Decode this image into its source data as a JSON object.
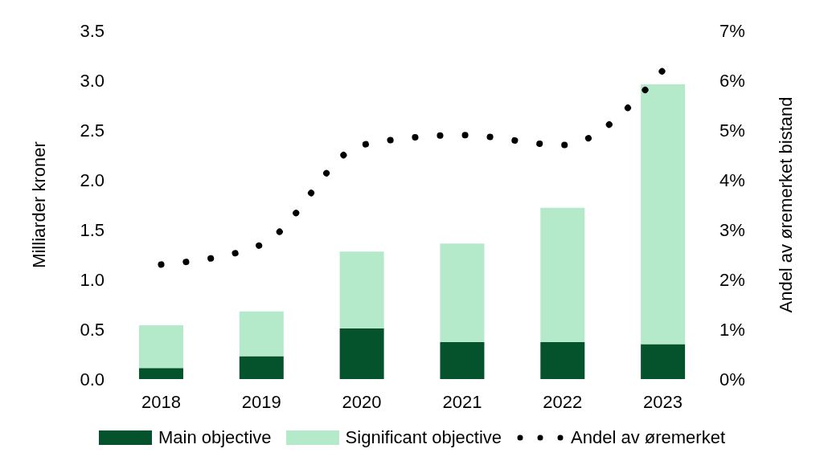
{
  "chart_data": {
    "type": "bar",
    "stacked": true,
    "categories": [
      "2018",
      "2019",
      "2020",
      "2021",
      "2022",
      "2023"
    ],
    "series": [
      {
        "name": "Main objective",
        "color": "#05532d",
        "values": [
          0.11,
          0.23,
          0.51,
          0.37,
          0.37,
          0.35
        ]
      },
      {
        "name": "Significant objective",
        "color": "#b4e9c9",
        "values": [
          0.43,
          0.45,
          0.77,
          0.99,
          1.35,
          2.61
        ]
      },
      {
        "name": "Andel av øremerket",
        "type": "line",
        "axis": "y2",
        "color": "#000000",
        "values": [
          2.3,
          2.7,
          4.7,
          4.9,
          4.7,
          6.2
        ]
      }
    ],
    "ylabel": "Milliarder kroner",
    "y2label": "Andel av øremerket bistand",
    "ylim": [
      0,
      3.5
    ],
    "yticks": [
      {
        "value": 0,
        "label": "0.0"
      },
      0.5,
      {
        "value": 1,
        "label": "1.0"
      },
      1.5,
      {
        "value": 2,
        "label": "2.0"
      },
      2.5,
      {
        "value": 3,
        "label": "3.0"
      },
      3.5
    ],
    "y2lim": [
      0,
      7
    ],
    "y2ticks": [
      {
        "value": 0,
        "label": "0%"
      },
      {
        "value": 1,
        "label": "1%"
      },
      {
        "value": 2,
        "label": "2%"
      },
      {
        "value": 3,
        "label": "3%"
      },
      {
        "value": 4,
        "label": "4%"
      },
      {
        "value": 5,
        "label": "5%"
      },
      {
        "value": 6,
        "label": "6%"
      },
      {
        "value": 7,
        "label": "7%"
      }
    ],
    "legend": "bottom",
    "line_style": "dotted",
    "marker": "none"
  }
}
